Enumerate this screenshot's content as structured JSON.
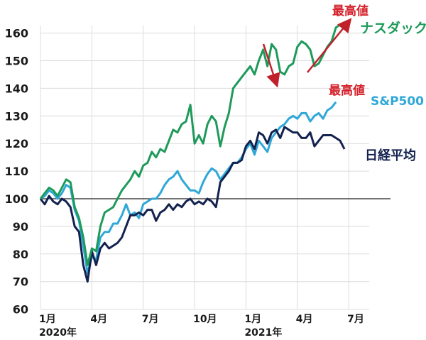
{
  "chart_data": {
    "type": "line",
    "title": "",
    "xlabel": "",
    "ylabel": "",
    "ylim": [
      60,
      160
    ],
    "yticks": [
      60,
      70,
      80,
      90,
      100,
      110,
      120,
      130,
      140,
      150,
      160
    ],
    "xticks": [
      {
        "label": "1月",
        "sub": "2020年",
        "index": 0
      },
      {
        "label": "4月",
        "sub": "",
        "index": 12
      },
      {
        "label": "7月",
        "sub": "",
        "index": 24
      },
      {
        "label": "10月",
        "sub": "",
        "index": 36
      },
      {
        "label": "1月",
        "sub": "2021年",
        "index": 48
      },
      {
        "label": "4月",
        "sub": "",
        "index": 60
      },
      {
        "label": "7月",
        "sub": "",
        "index": 72
      }
    ],
    "grid": true,
    "baseline": 100,
    "legend_position": "inline-right",
    "series": [
      {
        "name": "ナスダック",
        "color": "#1e9a5a",
        "values": [
          100,
          102,
          104,
          103,
          101,
          104,
          107,
          106,
          97,
          93,
          86,
          76,
          82,
          81,
          90,
          95,
          96,
          97,
          100,
          103,
          105,
          107,
          110,
          108,
          112,
          113,
          117,
          115,
          118,
          117,
          121,
          125,
          124,
          127,
          128,
          134,
          120,
          123,
          120,
          127,
          130,
          128,
          119,
          126,
          131,
          140,
          142,
          144,
          146,
          148,
          145,
          150,
          154,
          148,
          156,
          154,
          146,
          145,
          148,
          149,
          155,
          157,
          156,
          154,
          148,
          149,
          152,
          155,
          157,
          162,
          163
        ],
        "label_annotation": "最高値"
      },
      {
        "name": "S&P500",
        "color": "#2fa8d8",
        "values": [
          100,
          101,
          103,
          102,
          100,
          102,
          105,
          104,
          96,
          92,
          83,
          73,
          79,
          78,
          86,
          88,
          88,
          91,
          91,
          94,
          98,
          94,
          95,
          93,
          98,
          99,
          100,
          100,
          102,
          105,
          107,
          108,
          110,
          107,
          105,
          103,
          103,
          102,
          106,
          109,
          111,
          110,
          107,
          109,
          111,
          113,
          113,
          115,
          118,
          120,
          116,
          121,
          119,
          117,
          122,
          124,
          126,
          127,
          129,
          130,
          129,
          131,
          131,
          128,
          130,
          131,
          129,
          132,
          133,
          135
        ],
        "label_annotation": "最高値"
      },
      {
        "name": "日経平均",
        "color": "#14224f",
        "values": [
          100,
          98,
          101,
          99,
          98,
          100,
          99,
          97,
          90,
          88,
          76,
          70,
          81,
          76,
          82,
          84,
          82,
          83,
          84,
          86,
          90,
          94,
          94,
          95,
          94,
          96,
          96,
          92,
          95,
          96,
          98,
          96,
          98,
          97,
          99,
          100,
          98,
          99,
          98,
          100,
          99,
          97,
          106,
          108,
          110,
          113,
          113,
          114,
          119,
          121,
          118,
          124,
          123,
          120,
          124,
          125,
          122,
          126,
          125,
          124,
          124,
          122,
          122,
          124,
          119,
          121,
          123,
          123,
          123,
          122,
          121,
          118
        ]
      }
    ],
    "annotations": [
      {
        "text": "最高値",
        "color": "#d4202a",
        "near": "ナスダック"
      },
      {
        "text": "最高値",
        "color": "#d4202a",
        "near": "S&P500"
      }
    ],
    "arrows": [
      {
        "direction": "down",
        "color": "#c0202a"
      },
      {
        "direction": "up",
        "color": "#c0202a"
      }
    ]
  }
}
